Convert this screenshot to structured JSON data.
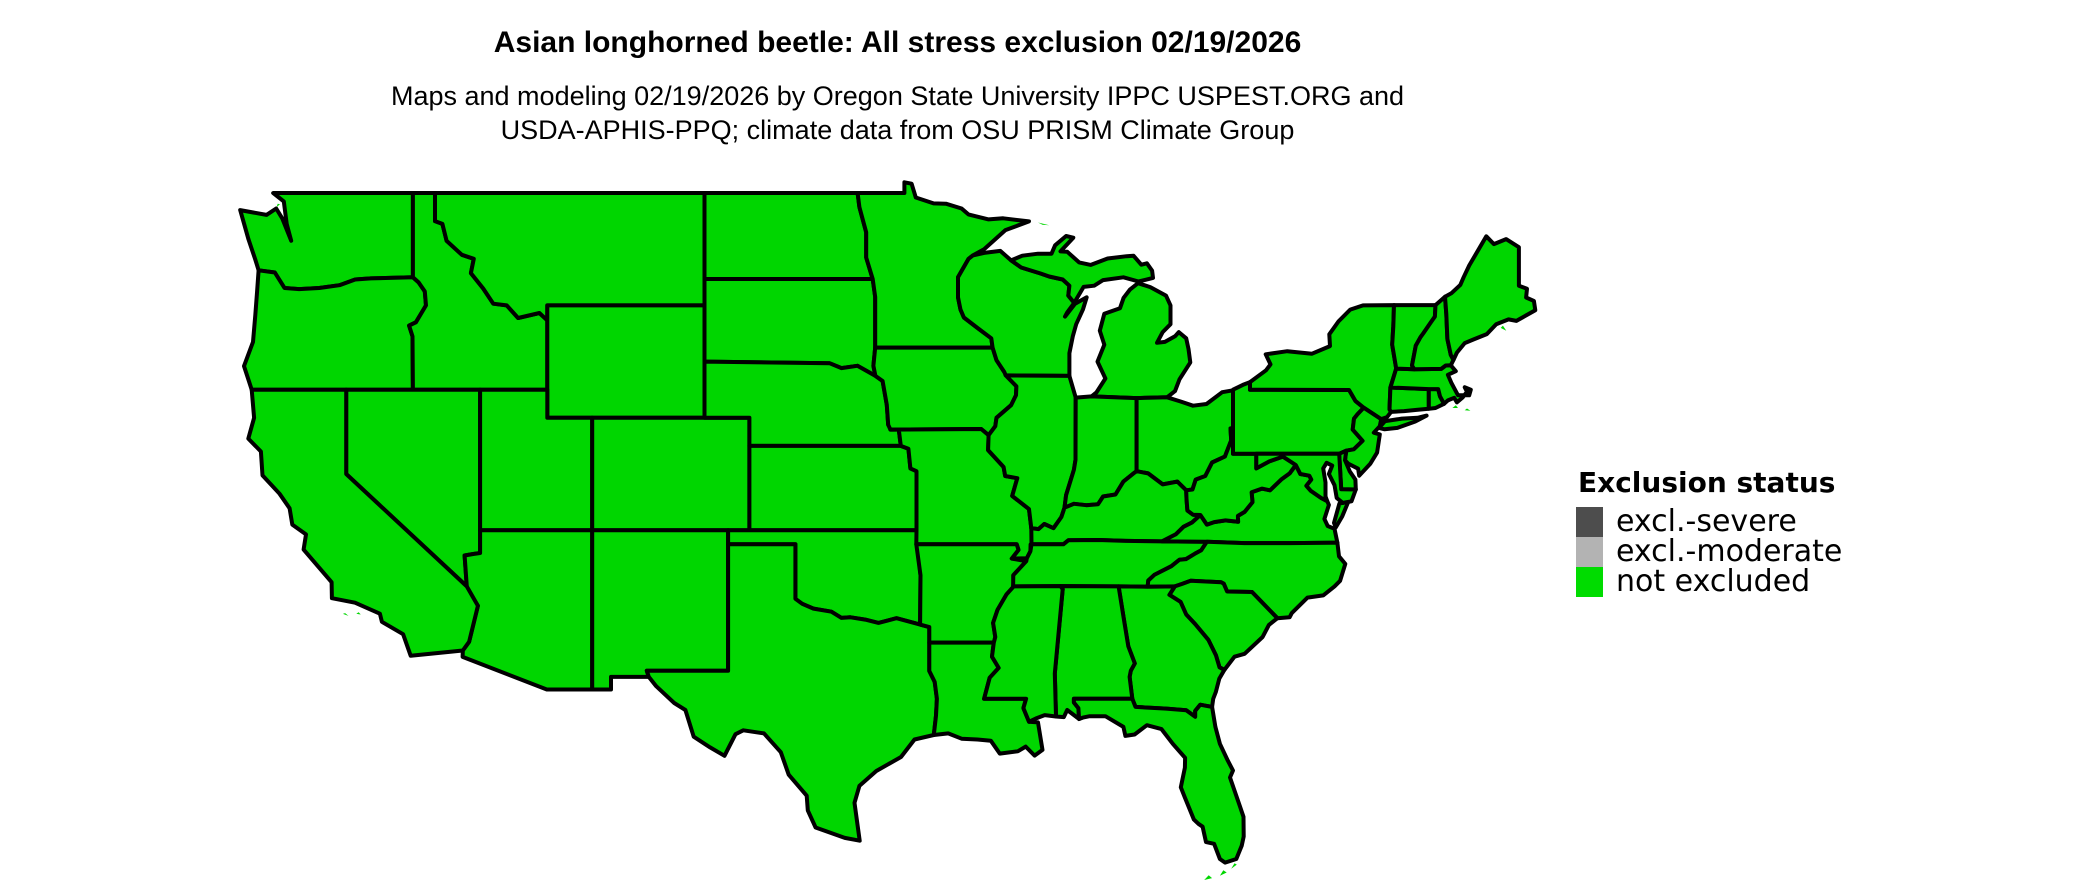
{
  "header": {
    "title": "Asian longhorned beetle: All stress exclusion 02/19/2026",
    "subtitle_line1": "Maps and modeling 02/19/2026 by Oregon State University IPPC USPEST.ORG and",
    "subtitle_line2": "USDA-APHIS-PPQ; climate data from OSU PRISM Climate Group"
  },
  "legend": {
    "title": "Exclusion status",
    "items": [
      {
        "label": "excl.-severe",
        "color": "#4d4d4d"
      },
      {
        "label": "excl.-moderate",
        "color": "#b3b3b3"
      },
      {
        "label": "not excluded",
        "color": "#00dc00"
      }
    ]
  },
  "map": {
    "region": "contiguous United States",
    "all_states_status": "not excluded",
    "fill_color": "#00d600",
    "border_color": "#000000",
    "water_color": "#ffffff"
  }
}
